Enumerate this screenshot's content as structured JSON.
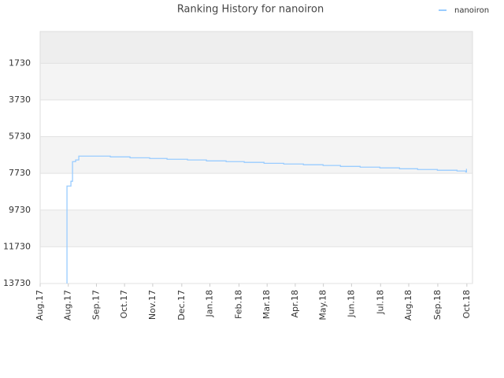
{
  "chart_data": {
    "type": "line",
    "step": "after",
    "title": "Ranking History for nanoiron",
    "legend": "top-right",
    "grid": true,
    "xlim": [
      0,
      461
    ],
    "ylim": [
      13730,
      0
    ],
    "yticks": [
      1730,
      3730,
      5730,
      7730,
      9730,
      11730,
      13730
    ],
    "xticks": [
      {
        "value": 0,
        "label": "Aug.17"
      },
      {
        "value": 30,
        "label": "Aug.17"
      },
      {
        "value": 60,
        "label": "Sep.17"
      },
      {
        "value": 90,
        "label": "Oct.17"
      },
      {
        "value": 120,
        "label": "Nov.17"
      },
      {
        "value": 151,
        "label": "Dec.17"
      },
      {
        "value": 181,
        "label": "Jan.18"
      },
      {
        "value": 212,
        "label": "Feb.18"
      },
      {
        "value": 242,
        "label": "Mar.18"
      },
      {
        "value": 272,
        "label": "Apr.18"
      },
      {
        "value": 302,
        "label": "May.18"
      },
      {
        "value": 332,
        "label": "Jun.18"
      },
      {
        "value": 363,
        "label": "Jul.18"
      },
      {
        "value": 393,
        "label": "Aug.18"
      },
      {
        "value": 424,
        "label": "Sep.18"
      },
      {
        "value": 455,
        "label": "Oct.18"
      }
    ],
    "x": [
      28.6,
      28.6,
      28.6,
      29.4,
      32.8,
      34.5,
      37.8,
      41.2,
      74.8,
      95.8,
      116.8,
      135.3,
      157.1,
      177.3,
      198.3,
      217.6,
      238.7,
      259.7,
      280.7,
      301.7,
      320.2,
      341.2,
      362.2,
      383.2,
      402.5,
      423.5,
      444.5,
      453.8,
      454.6
    ],
    "series": [
      {
        "name": "nanoiron",
        "color": "#99ccff",
        "values": [
          13730,
          9020,
          8420,
          8420,
          8160,
          7090,
          7000,
          6790,
          6830,
          6880,
          6920,
          6960,
          7000,
          7050,
          7090,
          7130,
          7180,
          7220,
          7260,
          7300,
          7350,
          7390,
          7430,
          7480,
          7520,
          7560,
          7600,
          7650,
          7480
        ]
      }
    ]
  }
}
